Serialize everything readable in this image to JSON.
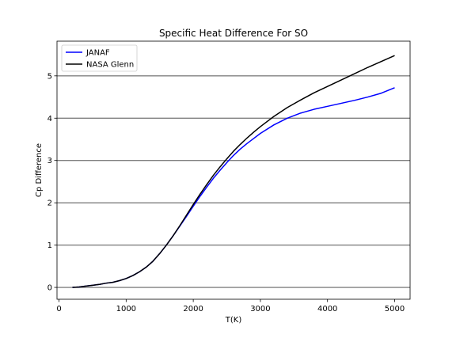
{
  "chart_data": {
    "type": "line",
    "title": "Specific Heat Difference For SO",
    "xlabel": "T(K)",
    "ylabel": "Cp Difference",
    "xlim": [
      -30,
      5230
    ],
    "ylim": [
      -0.28,
      5.82
    ],
    "xticks": [
      0,
      1000,
      2000,
      3000,
      4000,
      5000
    ],
    "yticks": [
      0,
      1,
      2,
      3,
      4,
      5
    ],
    "grid": "horizontal",
    "legend_position": "top-left",
    "series": [
      {
        "name": "JANAF",
        "color": "#0000ff",
        "x": [
          200,
          300,
          400,
          500,
          600,
          700,
          800,
          900,
          1000,
          1100,
          1200,
          1300,
          1400,
          1500,
          1600,
          1700,
          1800,
          1900,
          2000,
          2100,
          2200,
          2300,
          2400,
          2500,
          2600,
          2700,
          2800,
          2900,
          3000,
          3200,
          3400,
          3600,
          3800,
          4000,
          4200,
          4400,
          4600,
          4800,
          5000
        ],
        "y": [
          0.0,
          0.01,
          0.03,
          0.05,
          0.07,
          0.1,
          0.12,
          0.16,
          0.21,
          0.28,
          0.37,
          0.48,
          0.62,
          0.8,
          1.0,
          1.22,
          1.45,
          1.68,
          1.92,
          2.15,
          2.37,
          2.58,
          2.77,
          2.95,
          3.12,
          3.27,
          3.4,
          3.52,
          3.64,
          3.84,
          4.0,
          4.12,
          4.21,
          4.28,
          4.35,
          4.42,
          4.5,
          4.59,
          4.72
        ]
      },
      {
        "name": "NASA Glenn",
        "color": "#000000",
        "x": [
          200,
          300,
          400,
          500,
          600,
          700,
          800,
          900,
          1000,
          1100,
          1200,
          1300,
          1400,
          1500,
          1600,
          1700,
          1800,
          1900,
          2000,
          2100,
          2200,
          2300,
          2400,
          2500,
          2600,
          2700,
          2800,
          2900,
          3000,
          3200,
          3400,
          3600,
          3800,
          4000,
          4200,
          4400,
          4600,
          4800,
          5000
        ],
        "y": [
          0.0,
          0.01,
          0.03,
          0.05,
          0.07,
          0.1,
          0.12,
          0.16,
          0.21,
          0.28,
          0.37,
          0.48,
          0.62,
          0.8,
          1.0,
          1.22,
          1.46,
          1.71,
          1.96,
          2.2,
          2.43,
          2.65,
          2.85,
          3.04,
          3.22,
          3.38,
          3.53,
          3.67,
          3.8,
          4.04,
          4.25,
          4.43,
          4.6,
          4.75,
          4.9,
          5.05,
          5.2,
          5.34,
          5.48
        ]
      }
    ]
  }
}
